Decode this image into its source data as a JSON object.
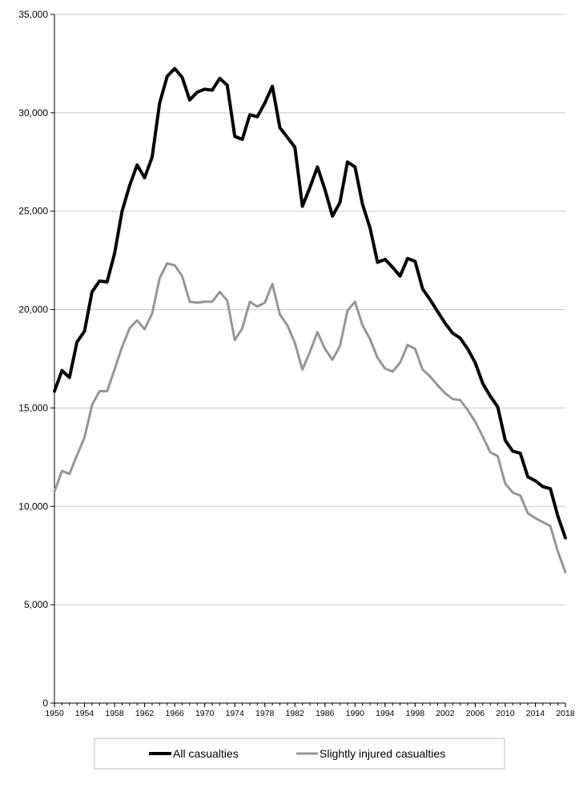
{
  "chart_data": {
    "type": "line",
    "title": "",
    "xlabel": "",
    "ylabel": "",
    "xlim": [
      1950,
      2018
    ],
    "ylim": [
      0,
      35000
    ],
    "y_ticks": [
      "0",
      "5,000",
      "10,000",
      "15,000",
      "20,000",
      "25,000",
      "30,000",
      "35,000"
    ],
    "y_tick_values": [
      0,
      5000,
      10000,
      15000,
      20000,
      25000,
      30000,
      35000
    ],
    "x_ticks": [
      "1950",
      "1954",
      "1958",
      "1962",
      "1966",
      "1970",
      "1974",
      "1978",
      "1982",
      "1986",
      "1990",
      "1994",
      "1998",
      "2002",
      "2006",
      "2010",
      "2014",
      "2018"
    ],
    "x_tick_values": [
      1950,
      1954,
      1958,
      1962,
      1966,
      1970,
      1974,
      1978,
      1982,
      1986,
      1990,
      1994,
      1998,
      2002,
      2006,
      2010,
      2014,
      2018
    ],
    "grid": "horizontal",
    "legend_position": "bottom",
    "x": [
      1950,
      1951,
      1952,
      1953,
      1954,
      1955,
      1956,
      1957,
      1958,
      1959,
      1960,
      1961,
      1962,
      1963,
      1964,
      1965,
      1966,
      1967,
      1968,
      1969,
      1970,
      1971,
      1972,
      1973,
      1974,
      1975,
      1976,
      1977,
      1978,
      1979,
      1980,
      1981,
      1982,
      1983,
      1984,
      1985,
      1986,
      1987,
      1988,
      1989,
      1990,
      1991,
      1992,
      1993,
      1994,
      1995,
      1996,
      1997,
      1998,
      1999,
      2000,
      2001,
      2002,
      2003,
      2004,
      2005,
      2006,
      2007,
      2008,
      2009,
      2010,
      2011,
      2012,
      2013,
      2014,
      2015,
      2016,
      2017,
      2018
    ],
    "series": [
      {
        "name": "All casualties",
        "color": "#000000",
        "values": [
          15850,
          16900,
          16550,
          18350,
          18900,
          20900,
          21450,
          21400,
          22850,
          25000,
          26300,
          27350,
          26700,
          27750,
          30500,
          31850,
          32250,
          31800,
          30650,
          31050,
          31200,
          31150,
          31750,
          31400,
          28800,
          28650,
          29900,
          29800,
          30500,
          31350,
          29250,
          28750,
          28250,
          25250,
          26200,
          27250,
          26100,
          24750,
          25450,
          27500,
          27250,
          25350,
          24150,
          22400,
          22550,
          22150,
          21700,
          22600,
          22450,
          21050,
          20500,
          19900,
          19300,
          18800,
          18550,
          18000,
          17300,
          16250,
          15600,
          15050,
          13350,
          12800,
          12700,
          11500,
          11300,
          11000,
          10900,
          9500,
          8400
        ]
      },
      {
        "name": "Slightly injured casualties",
        "color": "#969696",
        "values": [
          10750,
          11800,
          11650,
          12600,
          13500,
          15150,
          15850,
          15850,
          16950,
          18100,
          19050,
          19450,
          19000,
          19800,
          21600,
          22350,
          22250,
          21700,
          20400,
          20350,
          20400,
          20400,
          20900,
          20450,
          18450,
          19050,
          20400,
          20150,
          20350,
          21300,
          19750,
          19200,
          18300,
          16950,
          17850,
          18850,
          18000,
          17450,
          18150,
          19950,
          20400,
          19200,
          18500,
          17550,
          17000,
          16850,
          17300,
          18200,
          18000,
          16950,
          16600,
          16150,
          15750,
          15450,
          15400,
          14900,
          14300,
          13550,
          12750,
          12550,
          11150,
          10700,
          10550,
          9650,
          9400,
          9200,
          9000,
          7700,
          6650
        ]
      }
    ]
  }
}
